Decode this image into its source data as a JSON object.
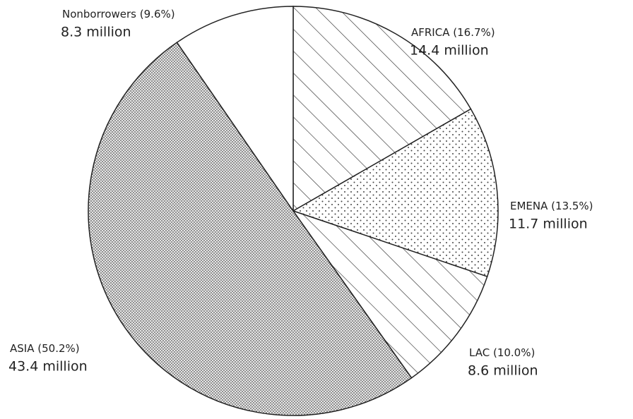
{
  "chart_data": {
    "type": "pie",
    "categories": [
      "AFRICA",
      "EMENA",
      "LAC",
      "ASIA",
      "Nonborrowers"
    ],
    "values": [
      16.7,
      13.5,
      10.0,
      50.2,
      9.6
    ],
    "value_labels": [
      "(16.7%)",
      "(13.5%)",
      "(10.0%)",
      "(50.2%)",
      "(9.6%)"
    ],
    "sublabels": [
      "14.4 million",
      "11.7 million",
      "8.6 million",
      "43.4 million",
      "8.3 million"
    ],
    "patterns": [
      "hatch",
      "dots",
      "hatch",
      "dense-dots",
      "none"
    ],
    "color": "#222222"
  }
}
